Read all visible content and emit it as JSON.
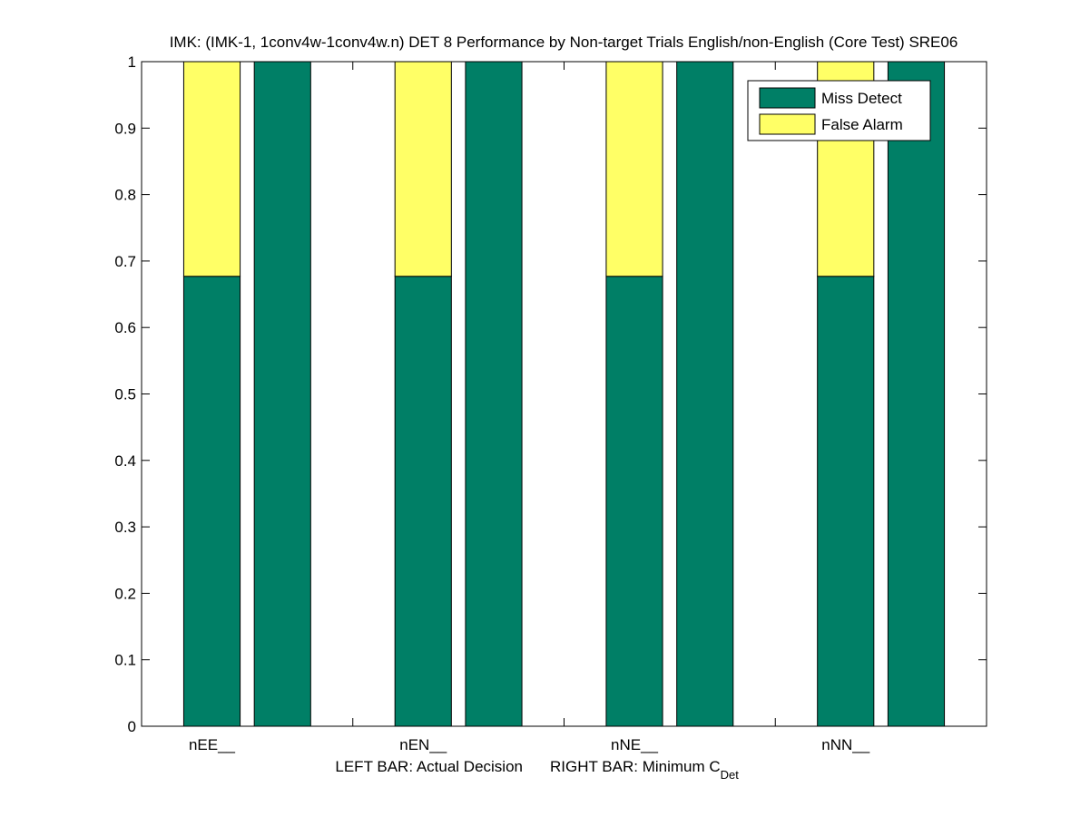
{
  "chart_data": {
    "type": "bar",
    "stacked": true,
    "title": "IMK: (IMK-1, 1conv4w-1conv4w.n) DET 8 Performance by Non-target Trials English/non-English (Core Test) SRE06",
    "xlabel_left": "LEFT BAR: Actual Decision",
    "xlabel_right_main": "RIGHT BAR: Minimum C",
    "xlabel_right_sub": "Det",
    "ylabel": "",
    "ylim": [
      0,
      1
    ],
    "xlim": [
      0.5,
      4.5
    ],
    "yticks": [
      "0",
      "0.1",
      "0.2",
      "0.3",
      "0.4",
      "0.5",
      "0.6",
      "0.7",
      "0.8",
      "0.9",
      "1"
    ],
    "categories": [
      "nEE__",
      "nEN__",
      "nNE__",
      "nNN__"
    ],
    "bar_roles": [
      "Actual Decision",
      "Minimum C_Det"
    ],
    "series": [
      {
        "name": "Miss Detect",
        "color": "#007f66",
        "actual_decision": [
          0.677,
          0.677,
          0.677,
          0.677
        ],
        "minimum_cdet": [
          1.0,
          1.0,
          1.0,
          1.0
        ]
      },
      {
        "name": "False Alarm",
        "color": "#ffff66",
        "actual_decision": [
          0.323,
          0.323,
          0.323,
          0.323
        ],
        "minimum_cdet": [
          0.0,
          0.0,
          0.0,
          0.0
        ]
      }
    ],
    "legend": {
      "placement": "top-right",
      "entries": [
        "Miss Detect",
        "False Alarm"
      ]
    },
    "grid": false
  }
}
